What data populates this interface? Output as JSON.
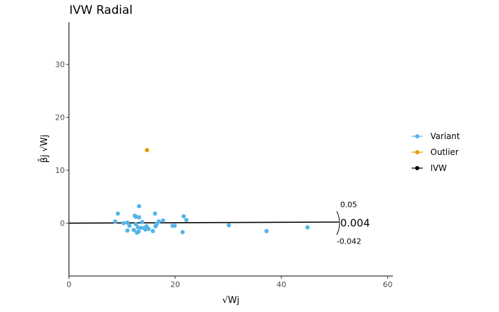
{
  "chart_data": {
    "type": "scatter",
    "title": "IVW Radial",
    "xlabel": "√Wj",
    "ylabel": "β̂j √Wj",
    "xlim": [
      0,
      61
    ],
    "ylim": [
      -10,
      38
    ],
    "x_ticks": [
      0,
      20,
      40,
      60
    ],
    "y_ticks": [
      0,
      10,
      20,
      30
    ],
    "grid": false,
    "legend_position": "right",
    "legend": [
      {
        "name": "Variant",
        "color": "#56B4E9"
      },
      {
        "name": "Outlier",
        "color": "#E69F00"
      },
      {
        "name": "IVW",
        "color": "#000000"
      }
    ],
    "series": [
      {
        "name": "Variant",
        "color": "#56B4E9",
        "points": [
          {
            "x": 8.7,
            "y": 0.3
          },
          {
            "x": 9.2,
            "y": 1.8
          },
          {
            "x": 10.3,
            "y": 0.0
          },
          {
            "x": 11.0,
            "y": -1.4
          },
          {
            "x": 11.0,
            "y": 0.1
          },
          {
            "x": 11.4,
            "y": -0.5
          },
          {
            "x": 12.2,
            "y": -1.3
          },
          {
            "x": 12.4,
            "y": 1.4
          },
          {
            "x": 12.6,
            "y": -0.2
          },
          {
            "x": 12.6,
            "y": 1.2
          },
          {
            "x": 12.8,
            "y": -1.8
          },
          {
            "x": 13.0,
            "y": -0.8
          },
          {
            "x": 13.1,
            "y": -1.6
          },
          {
            "x": 13.2,
            "y": 1.1
          },
          {
            "x": 13.2,
            "y": 3.2
          },
          {
            "x": 13.6,
            "y": -0.9
          },
          {
            "x": 13.8,
            "y": 0.2
          },
          {
            "x": 14.2,
            "y": -0.9
          },
          {
            "x": 14.4,
            "y": -1.2
          },
          {
            "x": 14.6,
            "y": -0.6
          },
          {
            "x": 15.0,
            "y": -1.1
          },
          {
            "x": 15.8,
            "y": -1.5
          },
          {
            "x": 16.2,
            "y": 1.8
          },
          {
            "x": 16.3,
            "y": -0.6
          },
          {
            "x": 16.5,
            "y": -0.2
          },
          {
            "x": 16.9,
            "y": 0.3
          },
          {
            "x": 17.7,
            "y": 0.5
          },
          {
            "x": 19.5,
            "y": -0.5
          },
          {
            "x": 19.9,
            "y": -0.5
          },
          {
            "x": 21.4,
            "y": -1.7
          },
          {
            "x": 21.6,
            "y": 1.3
          },
          {
            "x": 22.1,
            "y": 0.6
          },
          {
            "x": 30.1,
            "y": -0.4
          },
          {
            "x": 37.2,
            "y": -1.5
          },
          {
            "x": 44.9,
            "y": -0.8
          }
        ]
      },
      {
        "name": "Outlier",
        "color": "#E69F00",
        "points": [
          {
            "x": 14.7,
            "y": 13.8
          }
        ]
      }
    ],
    "ivw_line": {
      "name": "IVW",
      "slope": 0.004,
      "x_range": [
        0,
        50.8
      ],
      "color": "#000000"
    },
    "ivw_annotation": {
      "estimate": "0.004",
      "upper": "0.05",
      "lower": "-0.042"
    }
  }
}
